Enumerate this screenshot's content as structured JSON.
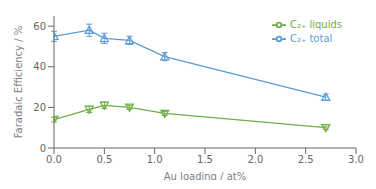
{
  "chart_data": {
    "type": "line",
    "xlabel": "Au loading / at%",
    "ylabel": "Faradaic Efficiency / %",
    "x": [
      0.0,
      0.35,
      0.5,
      0.75,
      1.1,
      2.7
    ],
    "series": [
      {
        "name": "C₂₊ total",
        "color": "#5B9BD5",
        "marker": "triangle-up",
        "values": [
          55,
          58,
          54,
          53,
          45,
          25
        ],
        "errors": [
          2.5,
          3,
          2.5,
          2,
          2,
          1.5
        ]
      },
      {
        "name": "C₂₊ liquids",
        "color": "#70AD47",
        "marker": "triangle-down",
        "values": [
          14,
          19,
          21,
          20,
          17,
          10
        ],
        "errors": [
          1.2,
          1.5,
          1.5,
          1,
          1,
          0.8
        ]
      }
    ],
    "xlim": [
      0,
      3.0
    ],
    "ylim": [
      0,
      65
    ],
    "xticks": [
      {
        "value": 0,
        "label": "0.0"
      },
      0.5,
      {
        "value": 1,
        "label": "1.0"
      },
      1.5,
      {
        "value": 2,
        "label": "2.0"
      },
      2.5,
      {
        "value": 3,
        "label": "3.0"
      }
    ],
    "yticks": [
      0,
      20,
      40,
      60
    ],
    "grid": false,
    "legend": "upper right"
  }
}
